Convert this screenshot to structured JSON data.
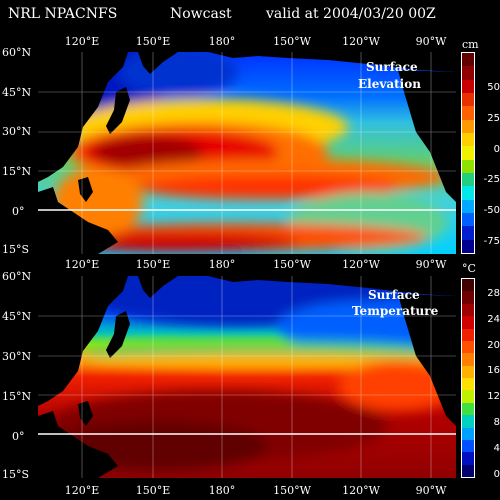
{
  "header": {
    "model": "NRL NPACNFS",
    "product": "Nowcast",
    "valid": "valid at 2004/03/20 00Z"
  },
  "lon_labels": [
    "120°E",
    "150°E",
    "180°",
    "150°W",
    "120°W",
    "90°W"
  ],
  "top_panel": {
    "title_line1": "Surface",
    "title_line2": "Elevation",
    "unit": "cm",
    "lat_labels": [
      "60°N",
      "45°N",
      "30°N",
      "15°N",
      "0°",
      "15°S"
    ],
    "colorbar_ticks": [
      "50",
      "25",
      "0",
      "-25",
      "-50",
      "-75"
    ],
    "colorbar_colors": [
      "#600000",
      "#900000",
      "#c80000",
      "#e83000",
      "#ff6000",
      "#ff9a00",
      "#ffd000",
      "#f0f000",
      "#90e000",
      "#20d080",
      "#00e8e8",
      "#00a8ff",
      "#0060ff",
      "#0020d0",
      "#000090"
    ]
  },
  "bottom_panel": {
    "title_line1": "Surface",
    "title_line2": "Temperature",
    "unit": "°C",
    "lat_labels": [
      "60°N",
      "45°N",
      "30°N",
      "15°N",
      "0°",
      "15°S"
    ],
    "colorbar_ticks": [
      "28",
      "24",
      "20",
      "16",
      "12",
      "8",
      "4",
      "0"
    ],
    "colorbar_colors": [
      "#400000",
      "#700000",
      "#a00000",
      "#d00000",
      "#f02000",
      "#ff5000",
      "#ff8000",
      "#ffb000",
      "#ffe000",
      "#c0f000",
      "#40e040",
      "#00d0c0",
      "#00a0ff",
      "#0050ff",
      "#0010c0",
      "#000070"
    ]
  }
}
